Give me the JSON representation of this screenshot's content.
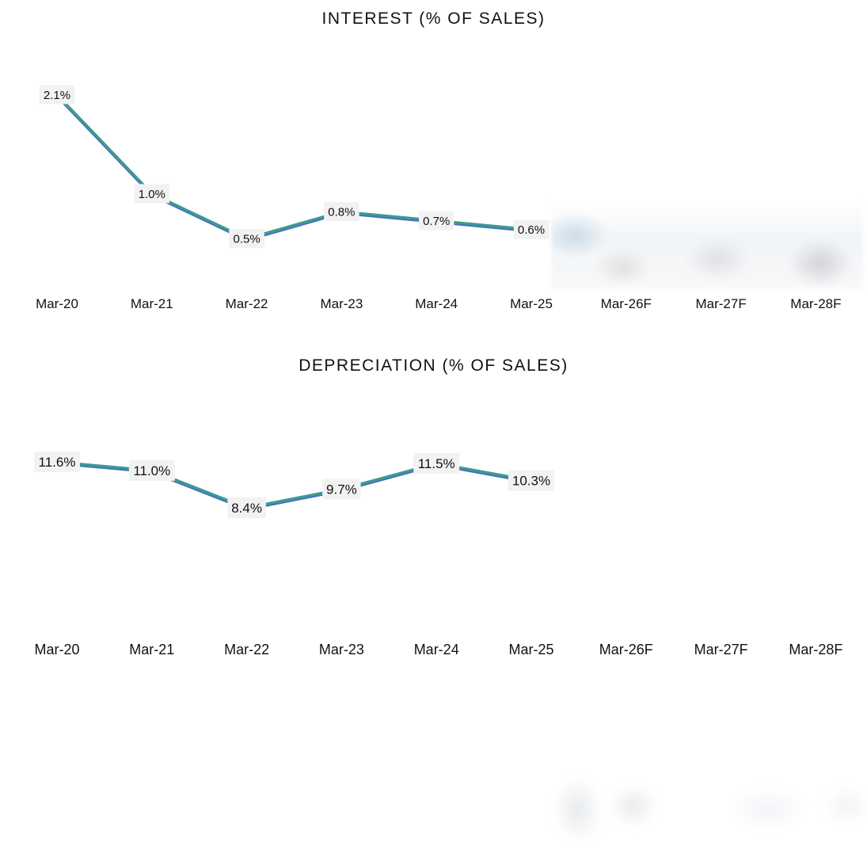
{
  "chart_data": [
    {
      "type": "line",
      "title": "INTEREST (% OF SALES)",
      "categories": [
        "Mar-20",
        "Mar-21",
        "Mar-22",
        "Mar-23",
        "Mar-24",
        "Mar-25",
        "Mar-26F",
        "Mar-27F",
        "Mar-28F"
      ],
      "values": [
        2.1,
        1.0,
        0.5,
        0.8,
        0.7,
        0.6
      ],
      "labels": [
        "2.1%",
        "1.0%",
        "0.5%",
        "0.8%",
        "0.7%",
        "0.6%"
      ],
      "ylim": [
        0,
        2.35
      ],
      "grid": false,
      "legend": "none",
      "colors": {
        "line": "#3f9a8f",
        "underline": "#4472c4"
      },
      "forecast_region": "blurred"
    },
    {
      "type": "line",
      "title": "DEPRECIATION (% OF SALES)",
      "categories": [
        "Mar-20",
        "Mar-21",
        "Mar-22",
        "Mar-23",
        "Mar-24",
        "Mar-25",
        "Mar-26F",
        "Mar-27F",
        "Mar-28F"
      ],
      "values": [
        11.6,
        11.0,
        8.4,
        9.7,
        11.5,
        10.3
      ],
      "labels": [
        "11.6%",
        "11.0%",
        "8.4%",
        "9.7%",
        "11.5%",
        "10.3%"
      ],
      "ylim": [
        0,
        14.7
      ],
      "grid": false,
      "legend": "none",
      "colors": {
        "line": "#3f9a8f",
        "underline": "#4472c4"
      },
      "forecast_region": "blurred"
    }
  ]
}
